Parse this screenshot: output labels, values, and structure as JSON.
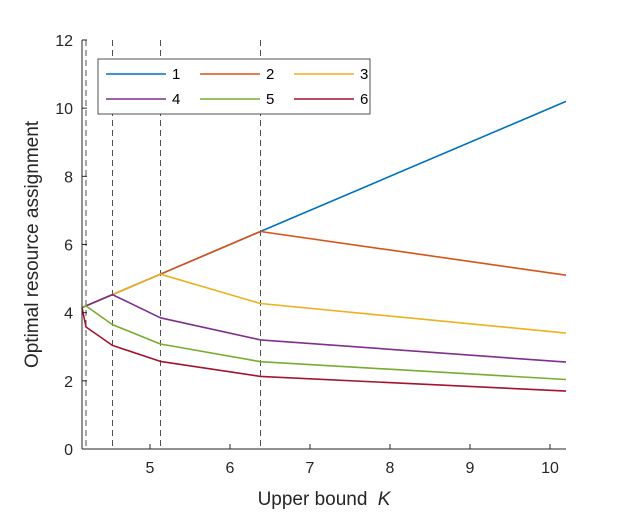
{
  "chart_data": {
    "type": "line",
    "xlabel": "Upper bound",
    "xlabel_italic": "K",
    "ylabel": "Optimal resource assignment",
    "xlim": [
      4.15,
      10.2
    ],
    "ylim": [
      0,
      12
    ],
    "xticks": [
      5,
      6,
      7,
      8,
      9,
      10
    ],
    "yticks": [
      0,
      2,
      4,
      6,
      8,
      10,
      12
    ],
    "vlines": [
      4.2,
      4.53,
      5.13,
      6.38
    ],
    "legend_position": "top-left",
    "legend_columns": 3,
    "grid": false,
    "series": [
      {
        "name": "1",
        "color": "#0072BD",
        "points": [
          [
            4.15,
            4.15
          ],
          [
            4.2,
            4.2
          ],
          [
            4.53,
            4.53
          ],
          [
            5.13,
            5.13
          ],
          [
            6.38,
            6.38
          ],
          [
            10.2,
            10.2
          ]
        ]
      },
      {
        "name": "2",
        "color": "#D95319",
        "points": [
          [
            4.15,
            4.15
          ],
          [
            4.2,
            4.2
          ],
          [
            4.53,
            4.53
          ],
          [
            5.13,
            5.13
          ],
          [
            6.38,
            6.38
          ],
          [
            10.2,
            5.1
          ]
        ]
      },
      {
        "name": "3",
        "color": "#EDB120",
        "points": [
          [
            4.15,
            4.15
          ],
          [
            4.2,
            4.2
          ],
          [
            4.53,
            4.53
          ],
          [
            5.13,
            5.13
          ],
          [
            6.38,
            4.27
          ],
          [
            10.2,
            3.4
          ]
        ]
      },
      {
        "name": "4",
        "color": "#7E2F8E",
        "points": [
          [
            4.15,
            4.15
          ],
          [
            4.2,
            4.2
          ],
          [
            4.53,
            4.53
          ],
          [
            5.13,
            3.85
          ],
          [
            6.38,
            3.2
          ],
          [
            10.2,
            2.55
          ]
        ]
      },
      {
        "name": "5",
        "color": "#77AC30",
        "points": [
          [
            4.15,
            4.15
          ],
          [
            4.2,
            4.2
          ],
          [
            4.53,
            3.65
          ],
          [
            5.13,
            3.08
          ],
          [
            6.38,
            2.56
          ],
          [
            10.2,
            2.04
          ]
        ]
      },
      {
        "name": "6",
        "color": "#A2142F",
        "points": [
          [
            4.15,
            4.15
          ],
          [
            4.2,
            3.58
          ],
          [
            4.53,
            3.04
          ],
          [
            5.13,
            2.57
          ],
          [
            6.38,
            2.13
          ],
          [
            10.2,
            1.7
          ]
        ]
      }
    ]
  }
}
